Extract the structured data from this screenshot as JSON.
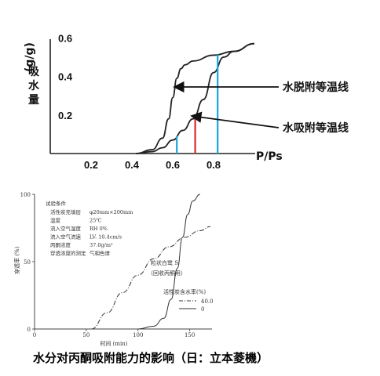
{
  "chart_data": [
    {
      "type": "line",
      "title": "",
      "xlabel": "P/Ps",
      "ylabel": "吸水量(g/g)",
      "xlim": [
        0,
        1.0
      ],
      "ylim": [
        0,
        0.65
      ],
      "x_ticks": [
        "0.2",
        "0.4",
        "0.6",
        "0.8"
      ],
      "y_ticks": [
        "0.2",
        "0.4",
        "0.6"
      ],
      "annotations": [
        "水脱附等温线",
        "水吸附等温线"
      ],
      "series": [
        {
          "name": "水脱附等温线",
          "x": [
            0.42,
            0.5,
            0.55,
            0.58,
            0.6,
            0.62,
            0.64,
            0.66,
            0.7,
            0.8,
            0.9,
            1.0
          ],
          "y": [
            0.0,
            0.02,
            0.08,
            0.18,
            0.29,
            0.39,
            0.44,
            0.46,
            0.48,
            0.51,
            0.53,
            0.57
          ]
        },
        {
          "name": "水吸附等温线",
          "x": [
            0.42,
            0.5,
            0.55,
            0.6,
            0.65,
            0.7,
            0.75,
            0.8,
            0.85,
            0.9,
            1.0
          ],
          "y": [
            0.0,
            0.01,
            0.03,
            0.07,
            0.12,
            0.18,
            0.28,
            0.42,
            0.5,
            0.53,
            0.57
          ]
        }
      ],
      "vertical_markers": [
        {
          "x": 0.62,
          "color": "#1aa7d8"
        },
        {
          "x": 0.71,
          "color": "#d42c2c"
        },
        {
          "x": 0.82,
          "color": "#1aa7d8"
        }
      ]
    },
    {
      "type": "line",
      "xlabel": "时间 (min)",
      "ylabel": "穿透率 (%)",
      "xlim": [
        0,
        170
      ],
      "ylim": [
        0,
        100
      ],
      "x_ticks": [
        "0",
        "50",
        "100",
        "150"
      ],
      "y_ticks": [
        "0",
        "50",
        "100"
      ],
      "conditions_title": "试验条件",
      "conditions": [
        {
          "label": "活性炭充填层",
          "value": "φ20mm×200mm"
        },
        {
          "label": "温度",
          "value": "25℃"
        },
        {
          "label": "流入空气湿度",
          "value": "RH 0%"
        },
        {
          "label": "流入空气流速",
          "value": "LV. 10.4cm/s"
        },
        {
          "label": "丙酮浓度",
          "value": "37.0g/m³"
        },
        {
          "label": "穿透浓度的测定",
          "value": "气相色谱"
        }
      ],
      "product_label": "粒状白鹭 S",
      "product_sub": "（回收丙酮用）",
      "legend_title": "活性炭含水率(%)",
      "series": [
        {
          "name": "40.0",
          "style": "dash-dot",
          "x": [
            55,
            70,
            85,
            100,
            115,
            130,
            145,
            160,
            170
          ],
          "y": [
            0,
            12,
            27,
            40,
            52,
            61,
            68,
            73,
            76
          ]
        },
        {
          "name": "0",
          "style": "solid",
          "x": [
            100,
            115,
            125,
            132,
            138,
            143,
            148,
            153,
            160
          ],
          "y": [
            0,
            2,
            8,
            22,
            45,
            68,
            85,
            95,
            100
          ]
        }
      ]
    }
  ],
  "caption": "水分对丙酮吸附能力的影响（日：立本菱機）"
}
